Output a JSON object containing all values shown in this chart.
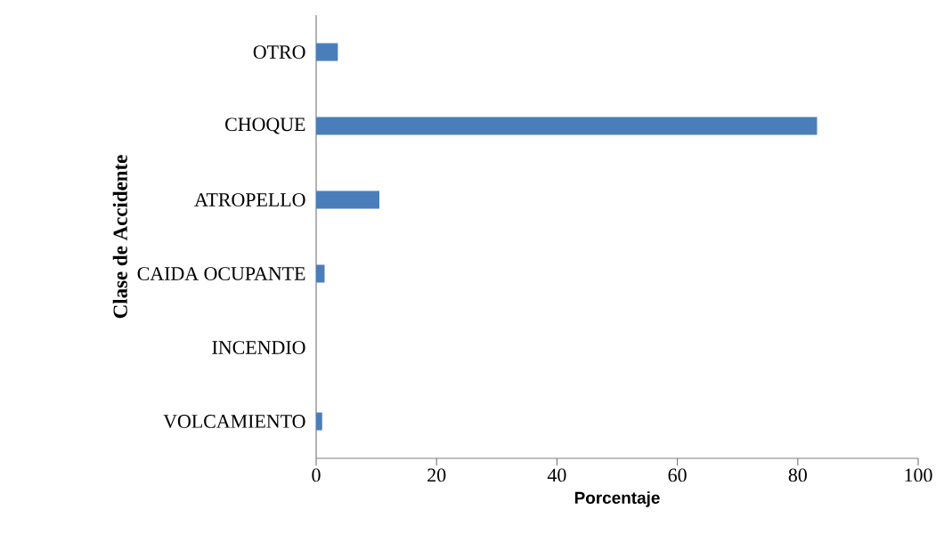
{
  "chart_data": {
    "type": "bar",
    "orientation": "horizontal",
    "xlabel": "Porcentaje",
    "ylabel": "Clase de Accidente",
    "categories": [
      "OTRO",
      "CHOQUE",
      "ATROPELLO",
      "CAIDA OCUPANTE",
      "INCENDIO",
      "VOLCAMIENTO"
    ],
    "values": [
      3.6,
      83.2,
      10.5,
      1.4,
      0,
      1.0
    ],
    "color": "#4a7ebb",
    "xlim": [
      0,
      100
    ],
    "xticks": [
      0,
      20,
      40,
      60,
      80,
      100
    ],
    "grid": false
  }
}
